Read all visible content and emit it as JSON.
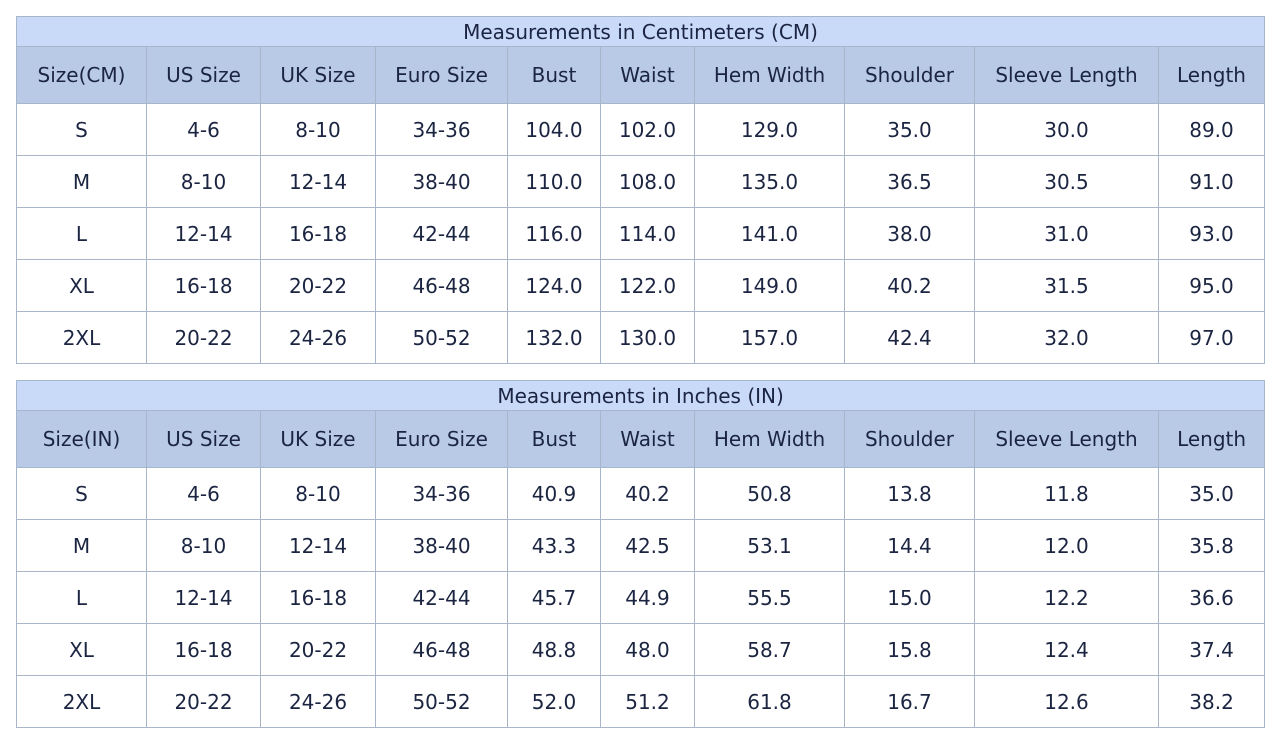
{
  "tables": [
    {
      "title": "Measurements in Centimeters (CM)",
      "headers": [
        "Size(CM)",
        "US Size",
        "UK Size",
        "Euro Size",
        "Bust",
        "Waist",
        "Hem Width",
        "Shoulder",
        "Sleeve Length",
        "Length"
      ],
      "rows": [
        [
          "S",
          "4-6",
          "8-10",
          "34-36",
          "104.0",
          "102.0",
          "129.0",
          "35.0",
          "30.0",
          "89.0"
        ],
        [
          "M",
          "8-10",
          "12-14",
          "38-40",
          "110.0",
          "108.0",
          "135.0",
          "36.5",
          "30.5",
          "91.0"
        ],
        [
          "L",
          "12-14",
          "16-18",
          "42-44",
          "116.0",
          "114.0",
          "141.0",
          "38.0",
          "31.0",
          "93.0"
        ],
        [
          "XL",
          "16-18",
          "20-22",
          "46-48",
          "124.0",
          "122.0",
          "149.0",
          "40.2",
          "31.5",
          "95.0"
        ],
        [
          "2XL",
          "20-22",
          "24-26",
          "50-52",
          "132.0",
          "130.0",
          "157.0",
          "42.4",
          "32.0",
          "97.0"
        ]
      ]
    },
    {
      "title": "Measurements in Inches (IN)",
      "headers": [
        "Size(IN)",
        "US Size",
        "UK Size",
        "Euro Size",
        "Bust",
        "Waist",
        "Hem Width",
        "Shoulder",
        "Sleeve Length",
        "Length"
      ],
      "rows": [
        [
          "S",
          "4-6",
          "8-10",
          "34-36",
          "40.9",
          "40.2",
          "50.8",
          "13.8",
          "11.8",
          "35.0"
        ],
        [
          "M",
          "8-10",
          "12-14",
          "38-40",
          "43.3",
          "42.5",
          "53.1",
          "14.4",
          "12.0",
          "35.8"
        ],
        [
          "L",
          "12-14",
          "16-18",
          "42-44",
          "45.7",
          "44.9",
          "55.5",
          "15.0",
          "12.2",
          "36.6"
        ],
        [
          "XL",
          "16-18",
          "20-22",
          "46-48",
          "48.8",
          "48.0",
          "58.7",
          "15.8",
          "12.4",
          "37.4"
        ],
        [
          "2XL",
          "20-22",
          "24-26",
          "50-52",
          "52.0",
          "51.2",
          "61.8",
          "16.7",
          "12.6",
          "38.2"
        ]
      ]
    }
  ]
}
